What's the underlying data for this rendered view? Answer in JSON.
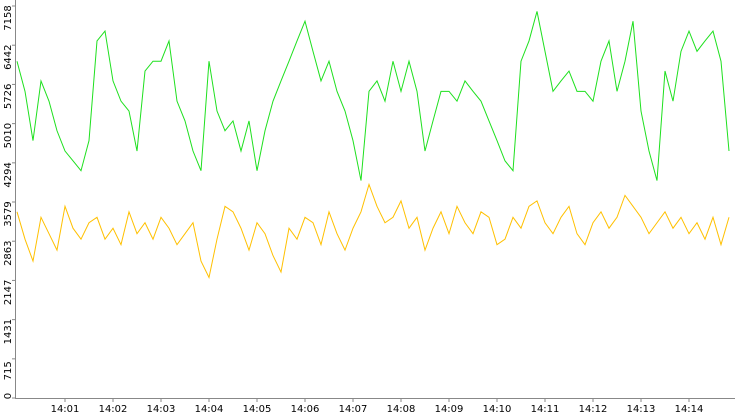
{
  "chart_data": {
    "type": "line",
    "categories": [
      null,
      null,
      null,
      null,
      null,
      null,
      "14:01",
      null,
      null,
      null,
      null,
      null,
      "14:02",
      null,
      null,
      null,
      null,
      null,
      "14:03",
      null,
      null,
      null,
      null,
      null,
      "14:04",
      null,
      null,
      null,
      null,
      null,
      "14:05",
      null,
      null,
      null,
      null,
      null,
      "14:06",
      null,
      null,
      null,
      null,
      null,
      "14:07",
      null,
      null,
      null,
      null,
      null,
      "14:08",
      null,
      null,
      null,
      null,
      null,
      "14:09",
      null,
      null,
      null,
      null,
      null,
      "14:10",
      null,
      null,
      null,
      null,
      null,
      "14:11",
      null,
      null,
      null,
      null,
      null,
      "14:12",
      null,
      null,
      null,
      null,
      null,
      "14:13",
      null,
      null,
      null,
      null,
      null,
      "14:14",
      null,
      null,
      null,
      null,
      null
    ],
    "series": [
      {
        "color": "#1ee01e",
        "values": [
          6150,
          5600,
          4700,
          5790,
          5420,
          4880,
          4510,
          4330,
          4150,
          4700,
          6520,
          6700,
          5790,
          5420,
          5240,
          4510,
          5970,
          6150,
          6150,
          6520,
          5420,
          5060,
          4510,
          4150,
          6150,
          5240,
          4880,
          5060,
          4510,
          5060,
          4150,
          4880,
          5420,
          5790,
          6150,
          6520,
          6880,
          6330,
          5790,
          6150,
          5600,
          5240,
          4700,
          3970,
          5600,
          5790,
          5420,
          6150,
          5600,
          6150,
          5600,
          4510,
          5060,
          5600,
          5600,
          5420,
          5790,
          5600,
          5420,
          5060,
          4700,
          4330,
          4150,
          6150,
          6520,
          7060,
          6330,
          5600,
          5790,
          5970,
          5600,
          5600,
          5420,
          6150,
          6520,
          5600,
          6150,
          6880,
          5240,
          4510,
          3970,
          5970,
          5420,
          6330,
          6700,
          6330,
          6520,
          6700,
          6150,
          4510
        ]
      },
      {
        "color": "#ffc000",
        "values": [
          3400,
          2900,
          2500,
          3300,
          3000,
          2700,
          3500,
          3100,
          2900,
          3200,
          3300,
          2900,
          3100,
          2800,
          3400,
          3000,
          3200,
          2900,
          3300,
          3100,
          2800,
          3000,
          3200,
          2500,
          2200,
          2900,
          3500,
          3400,
          3100,
          2700,
          3200,
          3000,
          2600,
          2300,
          3100,
          2900,
          3300,
          3200,
          2800,
          3400,
          3000,
          2700,
          3100,
          3400,
          3900,
          3500,
          3200,
          3300,
          3600,
          3100,
          3300,
          2700,
          3100,
          3400,
          3000,
          3500,
          3200,
          3000,
          3400,
          3300,
          2800,
          2900,
          3300,
          3100,
          3500,
          3600,
          3200,
          3000,
          3300,
          3500,
          3000,
          2800,
          3200,
          3400,
          3100,
          3300,
          3700,
          3500,
          3300,
          3000,
          3200,
          3400,
          3100,
          3300,
          3000,
          3200,
          2900,
          3300,
          2800,
          3300
        ]
      }
    ],
    "ylim": [
      0,
      7158
    ],
    "yticks": [
      0,
      715,
      1431,
      2147,
      2863,
      3579,
      4294,
      5010,
      5726,
      6442,
      7158
    ]
  }
}
